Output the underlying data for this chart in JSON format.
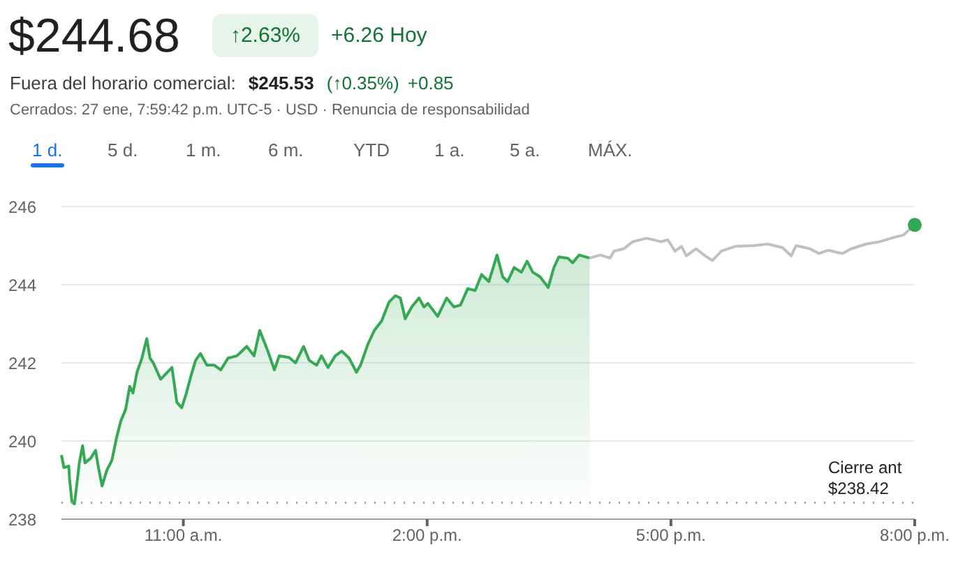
{
  "chart_data": {
    "type": "line",
    "title": "$244.68",
    "annotations": [
      "↑2.63%",
      "+6.26 Hoy",
      "Fuera del horario comercial:",
      "$245.53",
      "(↑0.35%)",
      "+0.85",
      "Cerrados: 27 ene, 7:59:42 p.m. UTC-5 · USD · Renuncia de responsabilidad",
      "1 d.",
      "5 d.",
      "1 m.",
      "6 m.",
      "YTD",
      "1 a.",
      "5 a.",
      "MÁX."
    ],
    "xlim": [
      9.5,
      20
    ],
    "xticks": [
      {
        "value": 11,
        "label": "11:00 a.m."
      },
      {
        "value": 14,
        "label": "2:00 p.m."
      },
      {
        "value": 17,
        "label": "5:00 p.m."
      },
      {
        "value": 20,
        "label": "8:00 p.m."
      }
    ],
    "ylim": [
      238,
      246
    ],
    "yticks": [
      238,
      240,
      242,
      244,
      246
    ],
    "grid": "y",
    "ref_lines": [
      {
        "axis": "y",
        "value": 238.42,
        "label": "Cierre ant\n$238.42",
        "color": "#9aa0a6",
        "line_style": "dotted"
      }
    ],
    "series": [
      {
        "type": "area",
        "color": "#34a853",
        "x": [
          9.5,
          9.53,
          9.59,
          9.6,
          9.63,
          9.66,
          9.69,
          9.72,
          9.76,
          9.79,
          9.86,
          9.92,
          9.95,
          10.0,
          10.06,
          10.12,
          10.18,
          10.23,
          10.29,
          10.34,
          10.38,
          10.43,
          10.49,
          10.55,
          10.59,
          10.63,
          10.72,
          10.86,
          10.92,
          10.98,
          11.03,
          11.09,
          11.15,
          11.21,
          11.29,
          11.38,
          11.46,
          11.55,
          11.66,
          11.78,
          11.87,
          11.94,
          12.04,
          12.12,
          12.18,
          12.3,
          12.38,
          12.48,
          12.55,
          12.64,
          12.7,
          12.78,
          12.87,
          12.95,
          13.04,
          13.13,
          13.18,
          13.27,
          13.35,
          13.44,
          13.53,
          13.61,
          13.67,
          13.73,
          13.81,
          13.9,
          13.96,
          14.01,
          14.13,
          14.24,
          14.33,
          14.41,
          14.5,
          14.59,
          14.67,
          14.76,
          14.86,
          14.93,
          14.99,
          15.07,
          15.16,
          15.23,
          15.3,
          15.39,
          15.49,
          15.56,
          15.62,
          15.73,
          15.79,
          15.87,
          16.0
        ],
        "values": [
          239.64,
          239.32,
          239.36,
          239.02,
          238.43,
          238.39,
          238.9,
          239.44,
          239.88,
          239.44,
          239.56,
          239.76,
          239.38,
          238.85,
          239.26,
          239.5,
          240.1,
          240.51,
          240.81,
          241.4,
          241.23,
          241.76,
          242.12,
          242.62,
          242.12,
          242.0,
          241.58,
          241.88,
          240.99,
          240.85,
          241.17,
          241.64,
          242.06,
          242.24,
          241.94,
          241.94,
          241.82,
          242.12,
          242.18,
          242.42,
          242.18,
          242.83,
          242.3,
          241.82,
          242.18,
          242.14,
          242.0,
          242.42,
          242.06,
          241.94,
          242.18,
          241.88,
          242.18,
          242.3,
          242.12,
          241.76,
          241.94,
          242.47,
          242.83,
          243.07,
          243.55,
          243.72,
          243.66,
          243.13,
          243.43,
          243.66,
          243.43,
          243.52,
          243.19,
          243.66,
          243.43,
          243.48,
          243.9,
          243.85,
          244.26,
          244.08,
          244.76,
          244.2,
          244.08,
          244.44,
          244.32,
          244.6,
          244.32,
          244.2,
          243.93,
          244.44,
          244.71,
          244.68,
          244.56,
          244.76,
          244.68
        ]
      },
      {
        "color": "#bdc1c6",
        "x": [
          16.0,
          16.13,
          16.25,
          16.3,
          16.42,
          16.53,
          16.7,
          16.88,
          16.96,
          17.05,
          17.13,
          17.19,
          17.31,
          17.42,
          17.51,
          17.62,
          17.79,
          18.02,
          18.19,
          18.37,
          18.48,
          18.54,
          18.71,
          18.82,
          18.94,
          19.11,
          19.22,
          19.4,
          19.57,
          19.74,
          19.86,
          20.0
        ],
        "values": [
          244.68,
          244.76,
          244.68,
          244.86,
          244.92,
          245.1,
          245.19,
          245.1,
          245.15,
          244.86,
          244.98,
          244.74,
          244.92,
          244.74,
          244.62,
          244.86,
          244.98,
          245.0,
          245.04,
          244.95,
          244.74,
          245.0,
          244.92,
          244.8,
          244.88,
          244.8,
          244.92,
          245.04,
          245.1,
          245.21,
          245.27,
          245.53
        ]
      },
      {
        "type": "scatter",
        "color": "#34a853",
        "marker": "circle",
        "x": [
          20
        ],
        "values": [
          245.53
        ]
      }
    ]
  }
}
